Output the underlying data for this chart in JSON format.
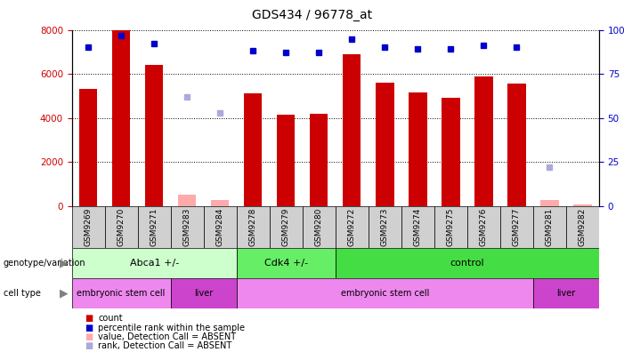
{
  "title": "GDS434 / 96778_at",
  "samples": [
    "GSM9269",
    "GSM9270",
    "GSM9271",
    "GSM9283",
    "GSM9284",
    "GSM9278",
    "GSM9279",
    "GSM9280",
    "GSM9272",
    "GSM9273",
    "GSM9274",
    "GSM9275",
    "GSM9276",
    "GSM9277",
    "GSM9281",
    "GSM9282"
  ],
  "counts": [
    5300,
    8000,
    6400,
    null,
    null,
    5100,
    4150,
    4200,
    6900,
    5600,
    5150,
    4900,
    5900,
    5550,
    null,
    null
  ],
  "counts_absent": [
    null,
    null,
    null,
    500,
    250,
    null,
    null,
    null,
    null,
    null,
    null,
    null,
    null,
    null,
    250,
    50
  ],
  "ranks": [
    90,
    97,
    92,
    null,
    null,
    88,
    87,
    87,
    95,
    90,
    89,
    89,
    91,
    90,
    null,
    null
  ],
  "ranks_absent": [
    null,
    null,
    null,
    62,
    53,
    null,
    null,
    null,
    null,
    null,
    null,
    null,
    null,
    null,
    22,
    null
  ],
  "bar_color": "#cc0000",
  "bar_absent_color": "#ffaaaa",
  "rank_color": "#0000cc",
  "rank_absent_color": "#aaaadd",
  "ylim_left": [
    0,
    8000
  ],
  "ylim_right": [
    0,
    100
  ],
  "yticks_left": [
    0,
    2000,
    4000,
    6000,
    8000
  ],
  "yticks_right": [
    0,
    25,
    50,
    75,
    100
  ],
  "yticklabels_right": [
    "0",
    "25",
    "50",
    "75",
    "100%"
  ],
  "grid_color": "black",
  "bg_color": "#ffffff",
  "genotype_groups": [
    {
      "label": "Abca1 +/-",
      "start": 0,
      "end": 5,
      "color": "#ccffcc"
    },
    {
      "label": "Cdk4 +/-",
      "start": 5,
      "end": 8,
      "color": "#66ee66"
    },
    {
      "label": "control",
      "start": 8,
      "end": 16,
      "color": "#44dd44"
    }
  ],
  "celltype_groups": [
    {
      "label": "embryonic stem cell",
      "start": 0,
      "end": 3,
      "color": "#ee88ee"
    },
    {
      "label": "liver",
      "start": 3,
      "end": 5,
      "color": "#cc44cc"
    },
    {
      "label": "embryonic stem cell",
      "start": 5,
      "end": 14,
      "color": "#ee88ee"
    },
    {
      "label": "liver",
      "start": 14,
      "end": 16,
      "color": "#cc44cc"
    }
  ],
  "legend_items": [
    {
      "label": "count",
      "color": "#cc0000"
    },
    {
      "label": "percentile rank within the sample",
      "color": "#0000cc"
    },
    {
      "label": "value, Detection Call = ABSENT",
      "color": "#ffaaaa"
    },
    {
      "label": "rank, Detection Call = ABSENT",
      "color": "#aaaadd"
    }
  ]
}
